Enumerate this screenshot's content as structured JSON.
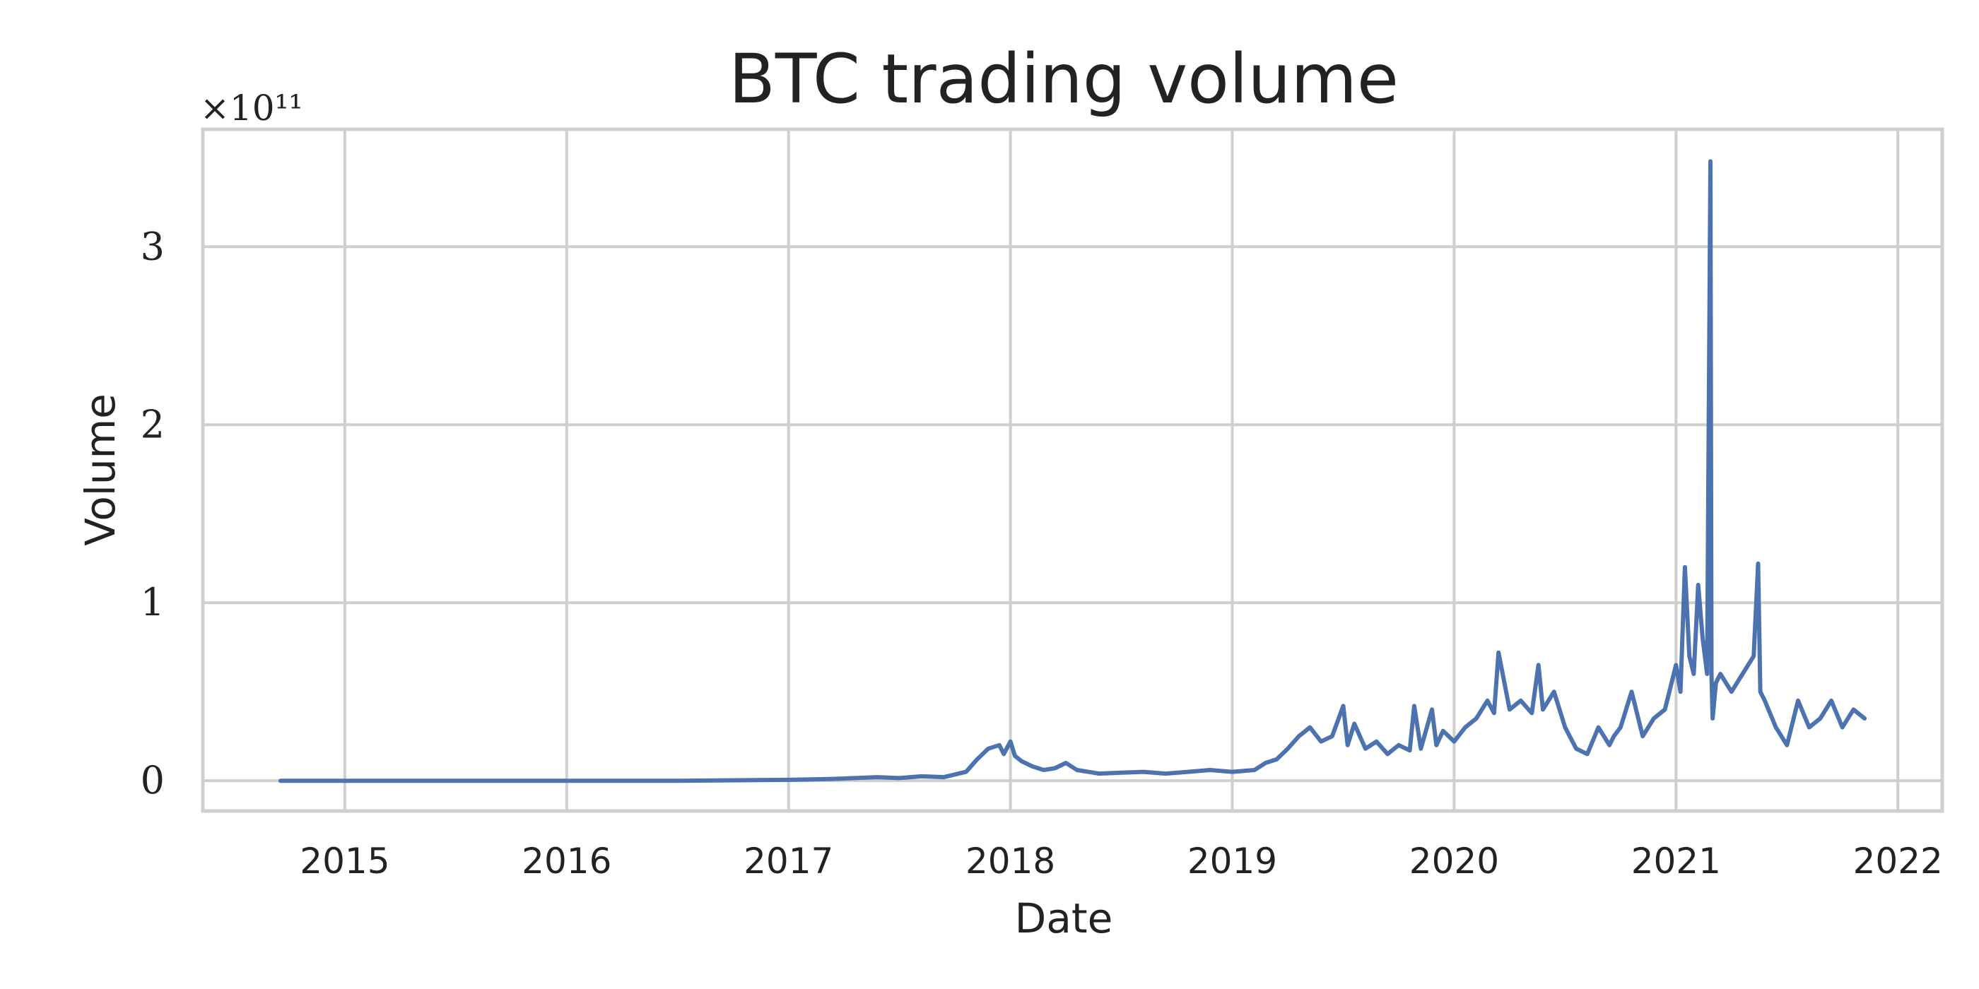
{
  "chart_data": {
    "type": "line",
    "title": "BTC trading volume",
    "xlabel": "Date",
    "ylabel": "Volume",
    "y_offset_text": "×10¹¹",
    "y_scale": 100000000000.0,
    "xlim": [
      2014.36,
      2022.2
    ],
    "ylim": [
      -0.17,
      3.66
    ],
    "grid": true,
    "x_ticks": [
      {
        "value": 2015,
        "label": "2015"
      },
      {
        "value": 2016,
        "label": "2016"
      },
      {
        "value": 2017,
        "label": "2017"
      },
      {
        "value": 2018,
        "label": "2018"
      },
      {
        "value": 2019,
        "label": "2019"
      },
      {
        "value": 2020,
        "label": "2020"
      },
      {
        "value": 2021,
        "label": "2021"
      },
      {
        "value": 2022,
        "label": "2022"
      }
    ],
    "y_ticks": [
      {
        "value": 0,
        "label": "0"
      },
      {
        "value": 1,
        "label": "1"
      },
      {
        "value": 2,
        "label": "2"
      },
      {
        "value": 3,
        "label": "3"
      }
    ],
    "series": [
      {
        "name": "Volume",
        "color": "#4c72b0",
        "x": [
          2014.71,
          2015.0,
          2015.5,
          2016.0,
          2016.5,
          2017.0,
          2017.2,
          2017.4,
          2017.5,
          2017.6,
          2017.7,
          2017.8,
          2017.85,
          2017.9,
          2017.95,
          2017.97,
          2018.0,
          2018.02,
          2018.05,
          2018.1,
          2018.15,
          2018.2,
          2018.25,
          2018.3,
          2018.35,
          2018.4,
          2018.5,
          2018.6,
          2018.7,
          2018.8,
          2018.9,
          2019.0,
          2019.1,
          2019.15,
          2019.2,
          2019.25,
          2019.3,
          2019.35,
          2019.4,
          2019.45,
          2019.5,
          2019.52,
          2019.55,
          2019.6,
          2019.65,
          2019.7,
          2019.75,
          2019.8,
          2019.82,
          2019.85,
          2019.9,
          2019.92,
          2019.95,
          2020.0,
          2020.05,
          2020.1,
          2020.15,
          2020.18,
          2020.2,
          2020.25,
          2020.3,
          2020.35,
          2020.38,
          2020.4,
          2020.45,
          2020.5,
          2020.55,
          2020.6,
          2020.65,
          2020.7,
          2020.72,
          2020.75,
          2020.8,
          2020.85,
          2020.9,
          2020.95,
          2021.0,
          2021.02,
          2021.04,
          2021.06,
          2021.08,
          2021.1,
          2021.12,
          2021.14,
          2021.155,
          2021.16,
          2021.165,
          2021.18,
          2021.2,
          2021.25,
          2021.3,
          2021.35,
          2021.37,
          2021.38,
          2021.4,
          2021.45,
          2021.5,
          2021.55,
          2021.6,
          2021.65,
          2021.7,
          2021.75,
          2021.8,
          2021.85
        ],
        "values": [
          0.0,
          0.0,
          0.0,
          0.0,
          0.0,
          0.005,
          0.01,
          0.02,
          0.015,
          0.025,
          0.02,
          0.05,
          0.12,
          0.18,
          0.2,
          0.15,
          0.22,
          0.14,
          0.11,
          0.08,
          0.06,
          0.07,
          0.1,
          0.06,
          0.05,
          0.04,
          0.045,
          0.05,
          0.04,
          0.05,
          0.06,
          0.05,
          0.06,
          0.1,
          0.12,
          0.18,
          0.25,
          0.3,
          0.22,
          0.25,
          0.42,
          0.2,
          0.32,
          0.18,
          0.22,
          0.15,
          0.2,
          0.17,
          0.42,
          0.18,
          0.4,
          0.2,
          0.28,
          0.22,
          0.3,
          0.35,
          0.45,
          0.38,
          0.72,
          0.4,
          0.45,
          0.38,
          0.65,
          0.4,
          0.5,
          0.3,
          0.18,
          0.15,
          0.3,
          0.2,
          0.25,
          0.3,
          0.5,
          0.25,
          0.35,
          0.4,
          0.65,
          0.5,
          1.2,
          0.7,
          0.6,
          1.1,
          0.8,
          0.6,
          3.48,
          0.6,
          0.35,
          0.55,
          0.6,
          0.5,
          0.6,
          0.7,
          1.22,
          0.5,
          0.45,
          0.3,
          0.2,
          0.45,
          0.3,
          0.35,
          0.45,
          0.3,
          0.4,
          0.35
        ]
      }
    ]
  }
}
